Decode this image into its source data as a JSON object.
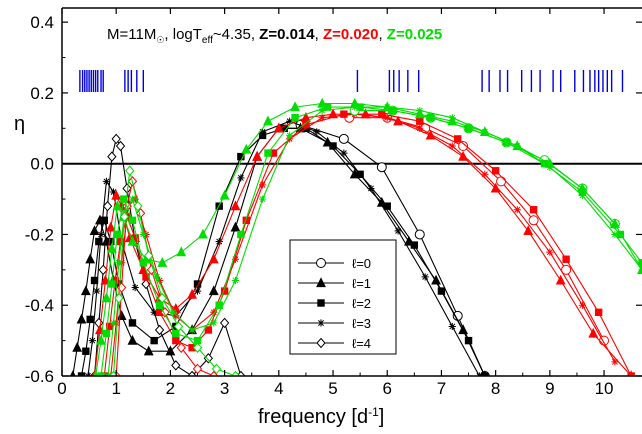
{
  "chart_data": {
    "type": "line",
    "title": {
      "prefix": "M=11M",
      "sun": "☉",
      "mid": ", logT",
      "sub": "eff",
      "rest": "~4.35, ",
      "z_labels": [
        {
          "text": "Z=0.014",
          "color": "#000000"
        },
        {
          "text": "Z=0.020",
          "color": "#ff0000"
        },
        {
          "text": "Z=0.025",
          "color": "#00dd00"
        }
      ]
    },
    "xlabel": "frequency [d",
    "xlabel_sup": "-1",
    "xlabel_end": "]",
    "ylabel": "η",
    "xlim": [
      0,
      10.7
    ],
    "ylim": [
      -0.6,
      0.44
    ],
    "x_ticks": [
      0,
      1,
      2,
      3,
      4,
      5,
      6,
      7,
      8,
      9,
      10
    ],
    "y_ticks": [
      0.4,
      0.2,
      0.0,
      -0.2,
      -0.4,
      -0.6
    ],
    "y_tick_labels": [
      "0.4",
      "0.2",
      "0.0",
      "-0.2",
      "-0.4",
      "-0.6"
    ],
    "zero_line": 0.0,
    "observed_frequencies": [
      0.33,
      0.38,
      0.42,
      0.46,
      0.5,
      0.54,
      0.58,
      0.62,
      0.66,
      0.72,
      0.76,
      1.16,
      1.22,
      1.28,
      1.38,
      1.5,
      5.45,
      6.04,
      6.12,
      6.22,
      6.38,
      6.58,
      7.75,
      7.88,
      8.08,
      8.22,
      8.48,
      8.66,
      8.82,
      9.06,
      9.2,
      9.46,
      9.62,
      9.74,
      9.83,
      9.9,
      9.98,
      10.06,
      10.14,
      10.34
    ],
    "legend": {
      "position": "center-right",
      "entries": [
        {
          "label": "ℓ=0",
          "marker": "circle"
        },
        {
          "label": "ℓ=1",
          "marker": "triangle"
        },
        {
          "label": "ℓ=2",
          "marker": "square"
        },
        {
          "label": "ℓ=3",
          "marker": "star"
        },
        {
          "label": "ℓ=4",
          "marker": "diamond"
        }
      ]
    },
    "series_colors": {
      "Z=0.014": "#000000",
      "Z=0.020": "#ff0000",
      "Z=0.025": "#00dd00"
    },
    "series": [
      {
        "z": "Z=0.014",
        "l": 0,
        "color": "#000000",
        "marker": "circle",
        "x": [
          4.4,
          5.2,
          5.9,
          6.6,
          7.3,
          7.8
        ],
        "y": [
          0.11,
          0.07,
          -0.01,
          -0.2,
          -0.43,
          -0.6
        ]
      },
      {
        "z": "Z=0.014",
        "l": 1,
        "color": "#000000",
        "marker": "triangle",
        "x": [
          0.2,
          0.28,
          0.36,
          0.44,
          0.52,
          0.6,
          0.7,
          0.82,
          0.95,
          1.1,
          1.3,
          1.6,
          2.0,
          2.4,
          2.8,
          3.2,
          3.6,
          4.0,
          4.4,
          4.9,
          5.4,
          5.9,
          6.4,
          6.9,
          7.4,
          7.8
        ],
        "y": [
          -0.6,
          -0.52,
          -0.44,
          -0.36,
          -0.27,
          -0.19,
          -0.16,
          -0.22,
          -0.33,
          -0.43,
          -0.5,
          -0.53,
          -0.53,
          -0.47,
          -0.36,
          -0.18,
          0.02,
          0.1,
          0.1,
          0.06,
          -0.03,
          -0.11,
          -0.22,
          -0.33,
          -0.47,
          -0.6
        ]
      },
      {
        "z": "Z=0.014",
        "l": 2,
        "color": "#000000",
        "marker": "square",
        "x": [
          0.36,
          0.44,
          0.52,
          0.6,
          0.68,
          0.78,
          0.9,
          1.05,
          1.3,
          1.7,
          2.1,
          2.5,
          2.9,
          3.3,
          3.7,
          4.1,
          4.5,
          5.0,
          5.5,
          6.0,
          6.5,
          7.0,
          7.5,
          7.8
        ],
        "y": [
          -0.6,
          -0.53,
          -0.44,
          -0.33,
          -0.22,
          -0.16,
          -0.22,
          -0.34,
          -0.45,
          -0.5,
          -0.46,
          -0.34,
          -0.12,
          0.02,
          0.08,
          0.1,
          0.1,
          0.05,
          -0.03,
          -0.12,
          -0.23,
          -0.36,
          -0.5,
          -0.6
        ]
      },
      {
        "z": "Z=0.014",
        "l": 3,
        "color": "#000000",
        "marker": "star",
        "x": [
          0.48,
          0.56,
          0.64,
          0.72,
          0.82,
          0.95,
          1.1,
          1.35,
          1.7,
          2.1,
          2.5,
          2.9,
          3.3,
          3.7,
          4.2,
          4.7,
          5.2,
          5.7,
          6.2,
          6.7,
          7.2,
          7.7
        ],
        "y": [
          -0.6,
          -0.5,
          -0.36,
          -0.2,
          -0.05,
          -0.08,
          -0.22,
          -0.35,
          -0.42,
          -0.43,
          -0.36,
          -0.22,
          -0.04,
          0.09,
          0.12,
          0.09,
          0.03,
          -0.07,
          -0.19,
          -0.32,
          -0.46,
          -0.6
        ]
      },
      {
        "z": "Z=0.014",
        "l": 4,
        "color": "#000000",
        "marker": "diamond",
        "x": [
          0.6,
          0.68,
          0.76,
          0.84,
          0.92,
          1.0,
          1.08,
          1.2,
          1.35,
          1.55,
          1.8,
          2.1,
          2.4,
          2.7,
          3.0,
          3.3
        ],
        "y": [
          -0.6,
          -0.45,
          -0.3,
          -0.12,
          0.02,
          0.07,
          0.05,
          -0.07,
          -0.22,
          -0.34,
          -0.47,
          -0.57,
          -0.6,
          -0.55,
          -0.45,
          -0.6
        ]
      },
      {
        "z": "Z=0.020",
        "l": 0,
        "color": "#ff0000",
        "marker": "circle",
        "x": [
          5.3,
          6.0,
          6.7,
          7.4,
          8.1,
          8.7,
          9.3,
          10.0
        ],
        "y": [
          0.13,
          0.13,
          0.1,
          0.05,
          -0.05,
          -0.16,
          -0.3,
          -0.5
        ]
      },
      {
        "z": "Z=0.020",
        "l": 1,
        "color": "#ff0000",
        "marker": "triangle",
        "x": [
          0.6,
          0.7,
          0.8,
          0.9,
          1.0,
          1.1,
          1.25,
          1.5,
          1.8,
          2.1,
          2.4,
          2.8,
          3.2,
          3.6,
          4.0,
          4.5,
          5.0,
          5.6,
          6.2,
          6.8,
          7.4,
          8.0,
          8.6,
          9.2,
          9.8,
          10.5
        ],
        "y": [
          -0.6,
          -0.47,
          -0.33,
          -0.18,
          -0.09,
          -0.12,
          -0.21,
          -0.3,
          -0.38,
          -0.41,
          -0.37,
          -0.27,
          -0.12,
          0.02,
          0.1,
          0.13,
          0.14,
          0.14,
          0.12,
          0.08,
          0.02,
          -0.07,
          -0.19,
          -0.33,
          -0.48,
          -0.6
        ]
      },
      {
        "z": "Z=0.020",
        "l": 2,
        "color": "#ff0000",
        "marker": "square",
        "x": [
          0.78,
          0.88,
          0.98,
          1.08,
          1.2,
          1.35,
          1.55,
          1.8,
          2.1,
          2.4,
          2.7,
          3.0,
          3.4,
          3.9,
          4.5,
          5.2,
          5.9,
          6.6,
          7.3,
          8.0,
          8.7,
          9.3,
          9.9,
          10.5
        ],
        "y": [
          -0.6,
          -0.46,
          -0.33,
          -0.22,
          -0.15,
          -0.21,
          -0.32,
          -0.42,
          -0.5,
          -0.52,
          -0.47,
          -0.36,
          -0.16,
          0.03,
          0.11,
          0.14,
          0.14,
          0.12,
          0.07,
          -0.02,
          -0.13,
          -0.27,
          -0.42,
          -0.6
        ]
      },
      {
        "z": "Z=0.020",
        "l": 3,
        "color": "#ff0000",
        "marker": "star",
        "x": [
          0.9,
          1.0,
          1.1,
          1.22,
          1.35,
          1.55,
          1.8,
          2.1,
          2.4,
          2.8,
          3.2,
          3.7,
          4.2,
          4.8,
          5.4,
          6.0,
          6.6,
          7.2,
          7.8,
          8.4,
          9.0,
          9.6,
          10.2
        ],
        "y": [
          -0.6,
          -0.45,
          -0.28,
          -0.12,
          -0.1,
          -0.2,
          -0.33,
          -0.43,
          -0.47,
          -0.42,
          -0.27,
          -0.06,
          0.07,
          0.13,
          0.14,
          0.13,
          0.1,
          0.05,
          -0.03,
          -0.13,
          -0.25,
          -0.4,
          -0.56
        ]
      },
      {
        "z": "Z=0.020",
        "l": 4,
        "color": "#ff0000",
        "marker": "diamond",
        "x": [
          1.0,
          1.1,
          1.2,
          1.3,
          1.45,
          1.65,
          1.9,
          2.2,
          2.5,
          2.8
        ],
        "y": [
          -0.6,
          -0.35,
          -0.12,
          -0.05,
          -0.14,
          -0.3,
          -0.42,
          -0.52,
          -0.58,
          -0.6
        ]
      },
      {
        "z": "Z=0.025",
        "l": 0,
        "color": "#00dd00",
        "marker": "circle",
        "x": [
          5.4,
          6.1,
          6.8,
          7.5,
          8.2,
          8.9,
          9.6,
          10.2
        ],
        "y": [
          0.15,
          0.15,
          0.13,
          0.1,
          0.06,
          0.01,
          -0.07,
          -0.17
        ]
      },
      {
        "z": "Z=0.025",
        "l": 1,
        "color": "#00dd00",
        "marker": "triangle",
        "x": [
          0.62,
          0.72,
          0.82,
          0.92,
          1.02,
          1.14,
          1.3,
          1.55,
          1.85,
          2.2,
          2.6,
          3.0,
          3.4,
          3.8,
          4.3,
          4.8,
          5.4,
          6.0,
          6.6,
          7.2,
          7.8,
          8.4,
          9.0,
          9.6,
          10.2,
          10.7
        ],
        "y": [
          -0.6,
          -0.5,
          -0.38,
          -0.24,
          -0.12,
          -0.15,
          -0.22,
          -0.27,
          -0.28,
          -0.25,
          -0.2,
          -0.09,
          0.04,
          0.12,
          0.16,
          0.17,
          0.17,
          0.16,
          0.14,
          0.12,
          0.09,
          0.05,
          0.0,
          -0.07,
          -0.17,
          -0.3
        ]
      },
      {
        "z": "Z=0.025",
        "l": 2,
        "color": "#00dd00",
        "marker": "square",
        "x": [
          0.72,
          0.82,
          0.92,
          1.02,
          1.14,
          1.3,
          1.5,
          1.8,
          2.1,
          2.5,
          2.9,
          3.3,
          3.8,
          4.3,
          4.9,
          5.5,
          6.1,
          6.8,
          7.5,
          8.2,
          8.9,
          9.6,
          10.3,
          10.7
        ],
        "y": [
          -0.6,
          -0.48,
          -0.34,
          -0.2,
          -0.1,
          -0.16,
          -0.28,
          -0.4,
          -0.48,
          -0.5,
          -0.4,
          -0.2,
          0.03,
          0.13,
          0.16,
          0.16,
          0.15,
          0.13,
          0.1,
          0.06,
          0.0,
          -0.08,
          -0.2,
          -0.28
        ]
      },
      {
        "z": "Z=0.025",
        "l": 3,
        "color": "#00dd00",
        "marker": "star",
        "x": [
          0.85,
          0.95,
          1.05,
          1.15,
          1.3,
          1.5,
          1.75,
          2.05,
          2.4,
          2.8,
          3.2,
          3.7,
          4.2,
          4.8,
          5.4,
          6.0,
          6.6,
          7.2,
          7.8,
          8.4,
          9.0,
          9.6,
          10.2,
          10.7
        ],
        "y": [
          -0.6,
          -0.45,
          -0.28,
          -0.14,
          -0.1,
          -0.2,
          -0.32,
          -0.42,
          -0.47,
          -0.45,
          -0.33,
          -0.1,
          0.08,
          0.15,
          0.16,
          0.16,
          0.15,
          0.13,
          0.09,
          0.05,
          -0.01,
          -0.09,
          -0.2,
          -0.3
        ]
      },
      {
        "z": "Z=0.025",
        "l": 4,
        "color": "#00dd00",
        "marker": "diamond",
        "x": [
          0.95,
          1.05,
          1.15,
          1.25,
          1.4,
          1.6,
          1.85,
          2.15,
          2.5,
          2.85,
          3.2
        ],
        "y": [
          -0.6,
          -0.38,
          -0.15,
          -0.02,
          -0.12,
          -0.26,
          -0.38,
          -0.46,
          -0.52,
          -0.58,
          -0.6
        ]
      }
    ]
  }
}
